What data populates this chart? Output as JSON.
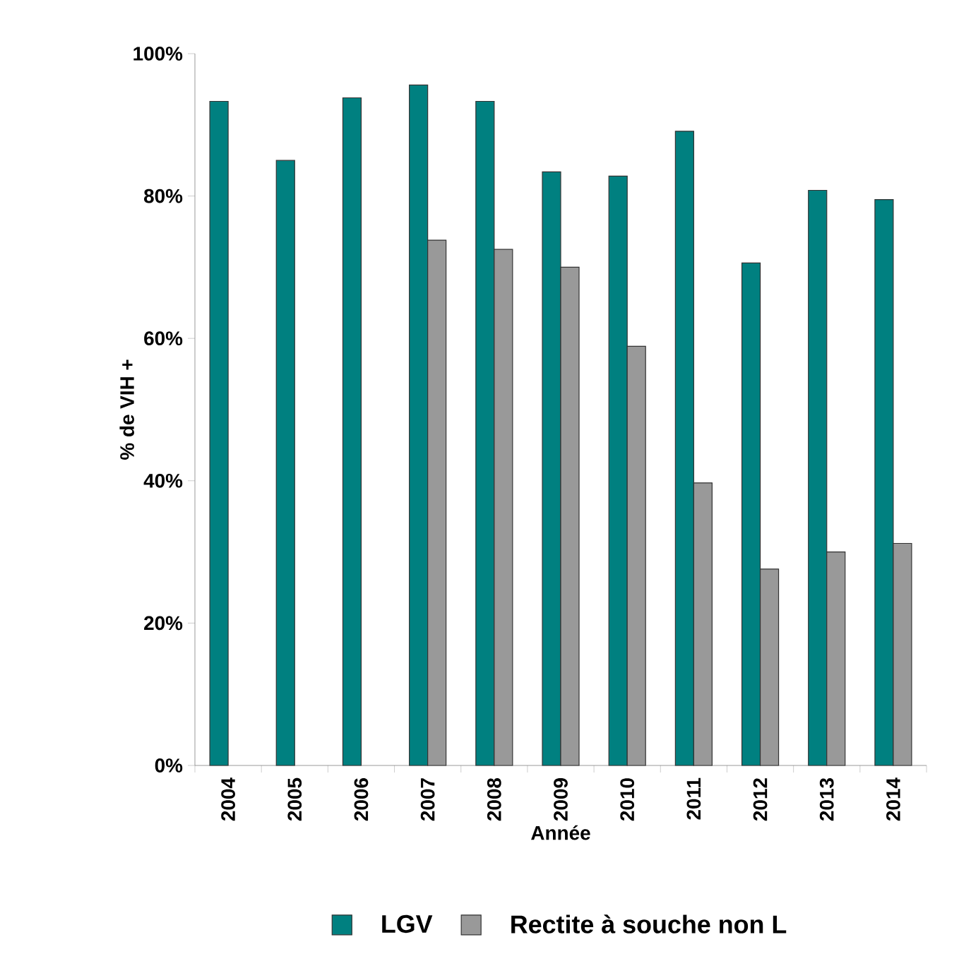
{
  "chart_data": {
    "type": "bar",
    "xlabel": "Année",
    "ylabel": "% de VIH +",
    "categories": [
      "2004",
      "2005",
      "2006",
      "2007",
      "2008",
      "2009",
      "2010",
      "2011",
      "2012",
      "2013",
      "2014"
    ],
    "series": [
      {
        "name": "LGV",
        "color": "#008080",
        "values": [
          93.3,
          85.0,
          93.8,
          95.6,
          93.3,
          83.4,
          82.8,
          89.1,
          70.6,
          80.8,
          79.5
        ]
      },
      {
        "name": "Rectite à souche non L",
        "color": "#999999",
        "values": [
          null,
          null,
          null,
          73.8,
          72.5,
          70.0,
          58.9,
          39.7,
          27.6,
          30.0,
          31.2
        ]
      }
    ],
    "ylim": [
      0,
      100
    ],
    "yticks": [
      {
        "value": 0,
        "label": "0%"
      },
      {
        "value": 20,
        "label": "20%"
      },
      {
        "value": 40,
        "label": "40%"
      },
      {
        "value": 60,
        "label": "60%"
      },
      {
        "value": 80,
        "label": "80%"
      },
      {
        "value": 100,
        "label": "100%"
      }
    ],
    "legend": "bottom"
  }
}
